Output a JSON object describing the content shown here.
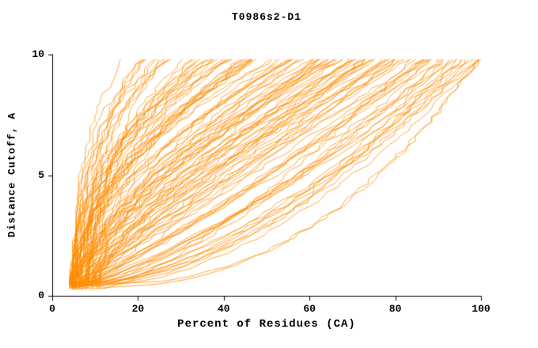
{
  "chart_data": {
    "type": "line",
    "title": "T0986s2-D1",
    "xlabel": "Percent of Residues (CA)",
    "ylabel": "Distance Cutoff, A",
    "xlim": [
      0,
      100
    ],
    "ylim": [
      0,
      10
    ],
    "x_ticks": [
      0,
      20,
      40,
      60,
      80,
      100
    ],
    "y_ticks": [
      0,
      5,
      10
    ],
    "grid": false,
    "legend": null,
    "line_color": "#FF8C00",
    "axis_color": "#000000",
    "description": "Dense ensemble of monotonically increasing model accuracy curves (GDT-style plot): percent of CA residues under a distance cutoff. All curves start near 4-12% at cutoff ~0.3 A and fan out; at cutoff 9.8 A their endpoints spread from about 17% to 100%.",
    "ensemble": {
      "n_curves": 120,
      "seed": 986,
      "start_percent_range": [
        4,
        12
      ],
      "start_cutoff_range": [
        0.25,
        0.55
      ],
      "end_cutoff": 9.8,
      "end_percent_range": [
        17,
        100
      ],
      "shape_exponent_range": [
        0.5,
        2.8
      ],
      "jitter_percent": 0.8
    },
    "envelope": {
      "cutoff_values": [
        1,
        2,
        5,
        9.8
      ],
      "min_percent": [
        5,
        8,
        13,
        17
      ],
      "max_percent": [
        38,
        65,
        97,
        100
      ]
    }
  }
}
